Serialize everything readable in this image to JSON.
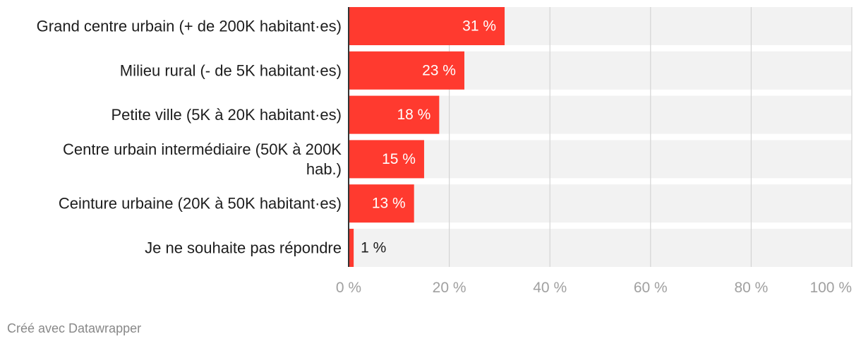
{
  "chart_data": {
    "type": "bar",
    "orientation": "horizontal",
    "categories": [
      "Grand centre urbain (+ de 200K habitant·es)",
      "Milieu rural (- de 5K habitant·es)",
      "Petite ville (5K à 20K habitant·es)",
      "Centre urbain intermédiaire (50K à 200K hab.)",
      "Ceinture urbaine (20K à 50K habitant·es)",
      "Je ne souhaite pas répondre"
    ],
    "category_lines": [
      [
        "Grand centre urbain (+ de 200K habitant·es)"
      ],
      [
        "Milieu rural (- de 5K habitant·es)"
      ],
      [
        "Petite ville (5K à 20K habitant·es)"
      ],
      [
        "Centre urbain intermédiaire (50K à 200K",
        "hab.)"
      ],
      [
        "Ceinture urbaine (20K à 50K habitant·es)"
      ],
      [
        "Je ne souhaite pas répondre"
      ]
    ],
    "values": [
      31,
      23,
      18,
      15,
      13,
      1
    ],
    "value_labels": [
      "31 %",
      "23 %",
      "18 %",
      "15 %",
      "13 %",
      "1 %"
    ],
    "xlim": [
      0,
      100
    ],
    "xticks": [
      0,
      20,
      40,
      60,
      80,
      100
    ],
    "xtick_labels": [
      "0 %",
      "20 %",
      "40 %",
      "60 %",
      "80 %",
      "100 %"
    ],
    "grid": true,
    "bar_color": "#ff3a2f",
    "track_color": "#f2f2f2",
    "grid_color": "#d4d4d4"
  },
  "footer": {
    "credit": "Créé avec Datawrapper"
  }
}
